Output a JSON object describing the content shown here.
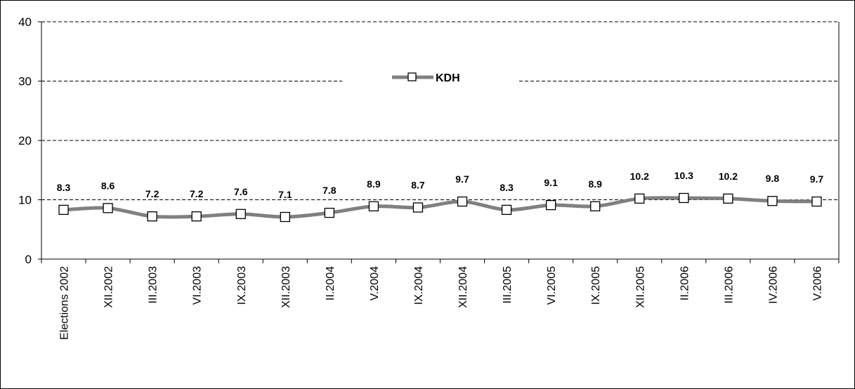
{
  "chart_data": {
    "type": "line",
    "categories": [
      "Elections 2002",
      "XII.2002",
      "III.2003",
      "VI.2003",
      "IX.2003",
      "XII.2003",
      "II.2004",
      "V.2004",
      "IX.2004",
      "XII.2004",
      "III.2005",
      "VI.2005",
      "IX.2005",
      "XII.2005",
      "II.2006",
      "III.2006",
      "IV.2006",
      "V.2006"
    ],
    "series": [
      {
        "name": "KDH",
        "values": [
          8.3,
          8.6,
          7.2,
          7.2,
          7.6,
          7.1,
          7.8,
          8.9,
          8.7,
          9.7,
          8.3,
          9.1,
          8.9,
          10.2,
          10.3,
          10.2,
          9.8,
          9.7
        ],
        "labels": [
          "8.3",
          "8.6",
          "7.2",
          "7.2",
          "7.6",
          "7.1",
          "7.8",
          "8.9",
          "8.7",
          "9.7",
          "8.3",
          "9.1",
          "8.9",
          "10.2",
          "10.3",
          "10.2",
          "9.8",
          "9.7"
        ],
        "color": "#808080"
      }
    ],
    "ylim": [
      0,
      40
    ],
    "yticks": [
      "0",
      "10",
      "20",
      "30",
      "40"
    ],
    "grid": "horizontal dashed",
    "legend": "top-center",
    "title": "",
    "xlabel": "",
    "ylabel": ""
  }
}
